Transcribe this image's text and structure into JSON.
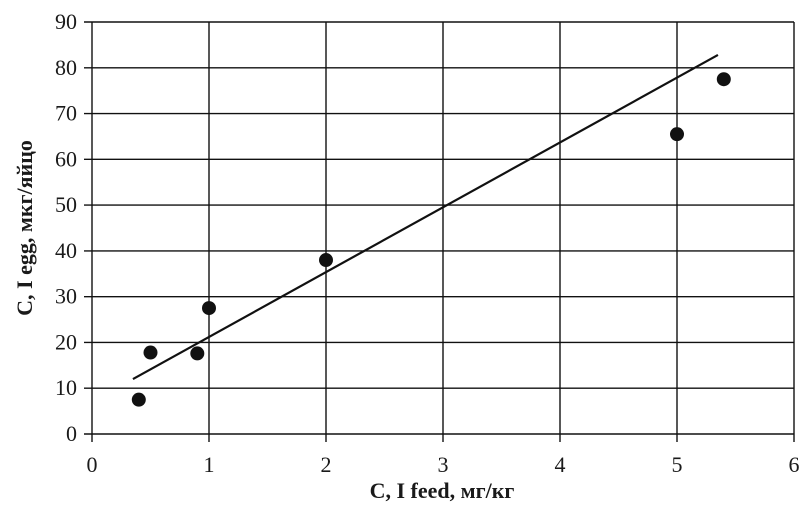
{
  "chart_data": {
    "type": "scatter",
    "xlabel": "C, I feed, мг/кг",
    "ylabel": "C, I egg, мкг/яйцо",
    "xlim": [
      0,
      6
    ],
    "ylim": [
      0,
      90
    ],
    "x_ticks": [
      0,
      1,
      2,
      3,
      4,
      5,
      6
    ],
    "y_ticks": [
      0,
      10,
      20,
      30,
      40,
      50,
      60,
      70,
      80,
      90
    ],
    "grid": true,
    "series": [
      {
        "x": [
          0.4,
          0.5,
          0.9,
          1.0,
          2.0,
          5.0,
          5.4
        ],
        "y": [
          7.5,
          17.8,
          17.6,
          27.5,
          38.0,
          65.5,
          77.5
        ]
      }
    ],
    "trendline": {
      "x": [
        0.35,
        5.35
      ],
      "y": [
        12.0,
        82.8
      ]
    },
    "colors": {
      "marker": "#111111",
      "line": "#111111",
      "grid": "#111111"
    }
  }
}
